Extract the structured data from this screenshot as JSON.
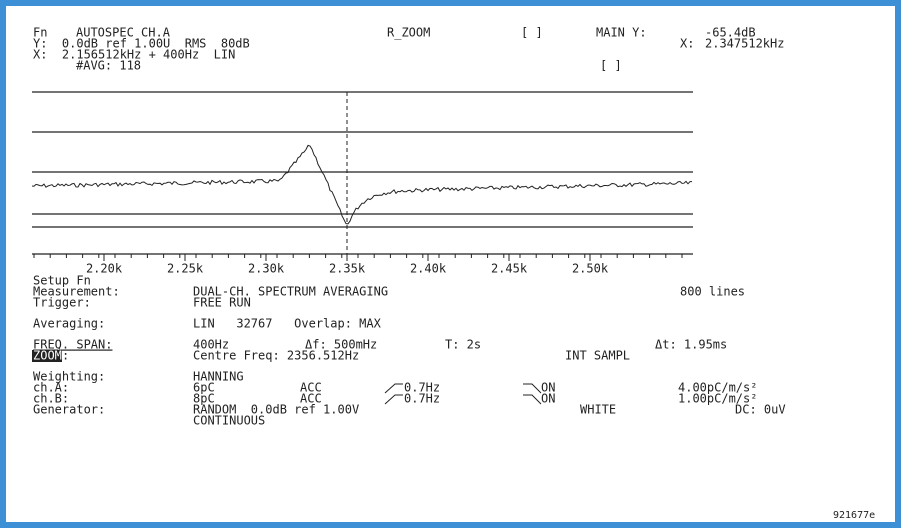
{
  "header": {
    "fn_label": "Fn",
    "fn": "AUTOSPEC CH.A",
    "mode": "R_ZOOM",
    "bracket1": "[ ]",
    "main_y_label": "MAIN Y:",
    "main_y": "-65.4dB",
    "y_line": "Y:  0.0dB ref 1.00U  RMS  80dB",
    "main_x_label": "X:",
    "main_x": "2.347512kHz",
    "x_line": "X:  2.156512kHz + 400Hz  LIN",
    "avg": "#AVG: 118",
    "bracket2": "[ ]"
  },
  "plot": {
    "xticks": [
      "2.20k",
      "2.25k",
      "2.30k",
      "2.35k",
      "2.40k",
      "2.45k",
      "2.50k"
    ]
  },
  "setup": {
    "title": "Setup Fn",
    "measurement": {
      "label": "Measurement:",
      "value": "DUAL-CH. SPECTRUM AVERAGING",
      "lines": "800 lines"
    },
    "trigger": {
      "label": "Trigger:",
      "value": "FREE RUN"
    },
    "averaging": {
      "label": "Averaging:",
      "value": "LIN   32767   Overlap: MAX"
    },
    "freq_span": {
      "label": "FREQ. SPAN:",
      "span": "400Hz",
      "df": "Δf: 500mHz",
      "t": "T: 2s",
      "dt": "Δt: 1.95ms"
    },
    "zoom": {
      "label": "ZOOM",
      "colon": ":",
      "centre": "Centre Freq: 2356.512Hz",
      "sampl": "INT SAMPL"
    },
    "weighting": {
      "label": "Weighting:",
      "value": "HANNING"
    },
    "cha": {
      "label": "ch.A:",
      "range": "6pC",
      "type": "ACC",
      "hp": "0.7Hz",
      "lp": "ON",
      "sens": "4.00pC/m/s²"
    },
    "chb": {
      "label": "ch.B:",
      "range": "8pC",
      "type": "ACC",
      "hp": "0.7Hz",
      "lp": "ON",
      "sens": "1.00pC/m/s²"
    },
    "generator": {
      "label": "Generator:",
      "value": "RANDOM  0.0dB ref 1.00V",
      "noise": "WHITE",
      "dc": "DC: 0uV",
      "mode": "CONTINUOUS"
    }
  },
  "footer": {
    "id": "921677e"
  }
}
